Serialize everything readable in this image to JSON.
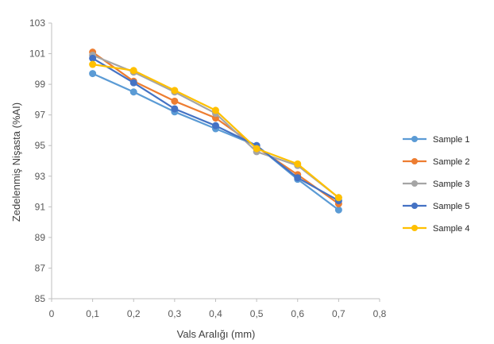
{
  "chart_data": {
    "type": "line",
    "title": "",
    "xlabel": "Vals Aralığı (mm)",
    "ylabel": "Zedelenmiş Nişasta (%AI)",
    "xlim": [
      0,
      0.8
    ],
    "ylim": [
      85,
      103
    ],
    "x_ticks": [
      0,
      0.1,
      0.2,
      0.3,
      0.4,
      0.5,
      0.6,
      0.7,
      0.8
    ],
    "x_tick_labels": [
      "0",
      "0,1",
      "0,2",
      "0,3",
      "0,4",
      "0,5",
      "0,6",
      "0,7",
      "0,8"
    ],
    "y_ticks": [
      85,
      87,
      89,
      91,
      93,
      95,
      97,
      99,
      101,
      103
    ],
    "y_tick_labels": [
      "85",
      "87",
      "89",
      "91",
      "93",
      "95",
      "97",
      "99",
      "101",
      "103"
    ],
    "grid": false,
    "legend_position": "right",
    "x": [
      0.1,
      0.2,
      0.3,
      0.4,
      0.5,
      0.6,
      0.7
    ],
    "series": [
      {
        "name": "Sample 1",
        "color": "#5B9BD5",
        "values": [
          99.7,
          98.5,
          97.2,
          96.1,
          95.0,
          92.8,
          90.8
        ]
      },
      {
        "name": "Sample 2",
        "color": "#ED7D31",
        "values": [
          101.1,
          99.2,
          97.9,
          96.8,
          94.9,
          93.1,
          91.2
        ]
      },
      {
        "name": "Sample 3",
        "color": "#A5A5A5",
        "values": [
          100.9,
          99.8,
          98.5,
          97.1,
          94.6,
          93.7,
          91.6
        ]
      },
      {
        "name": "Sample 5",
        "color": "#4472C4",
        "values": [
          100.7,
          99.1,
          97.4,
          96.3,
          95.0,
          92.9,
          91.4
        ]
      },
      {
        "name": "Sample 4",
        "color": "#FFC000",
        "values": [
          100.3,
          99.9,
          98.6,
          97.3,
          94.8,
          93.8,
          91.6
        ]
      }
    ]
  }
}
